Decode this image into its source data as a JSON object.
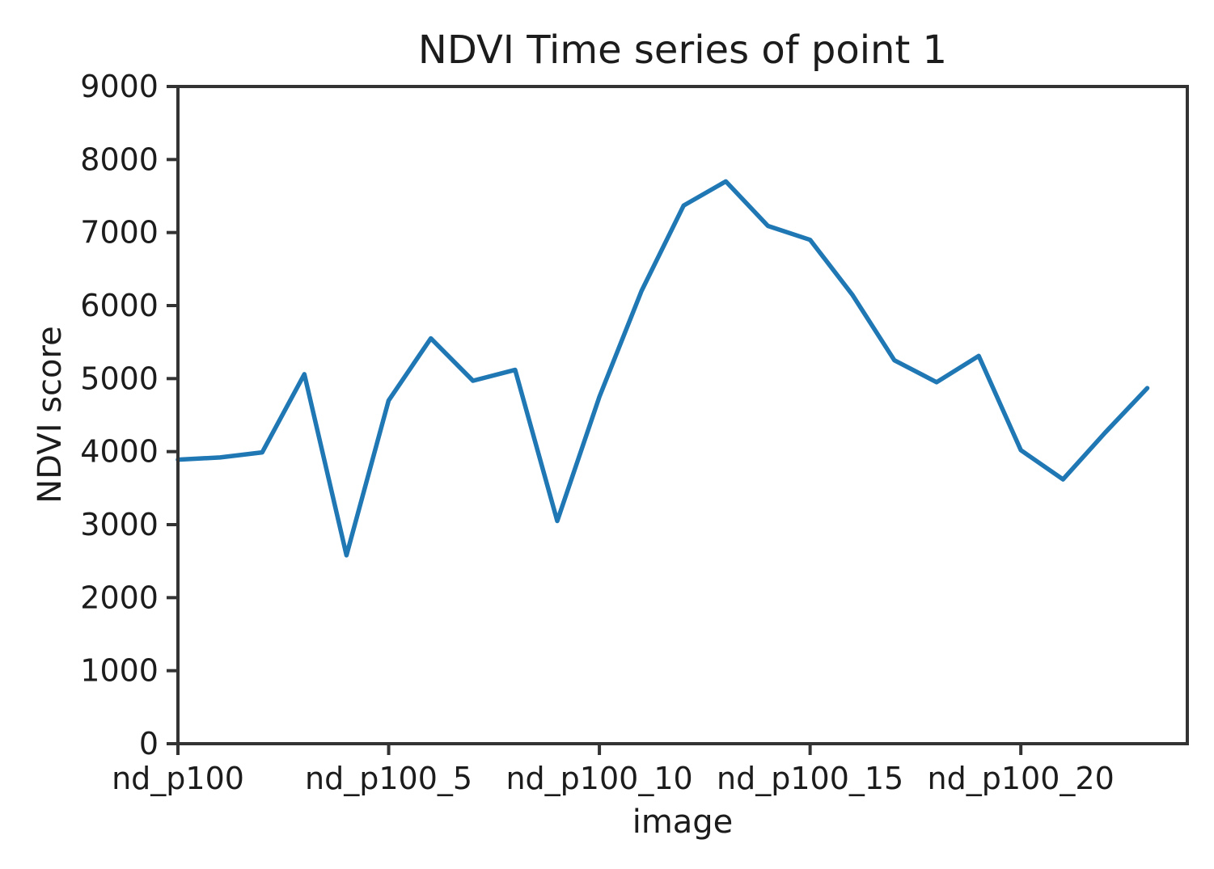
{
  "chart_data": {
    "type": "line",
    "title": "NDVI Time series of point 1",
    "xlabel": "image",
    "ylabel": "NDVI score",
    "x": [
      0,
      1,
      2,
      3,
      4,
      5,
      6,
      7,
      8,
      9,
      10,
      11,
      12,
      13,
      14,
      15,
      16,
      17,
      18,
      19,
      20,
      21,
      22,
      23
    ],
    "values": [
      3890,
      3920,
      3990,
      5060,
      2580,
      4700,
      5550,
      4970,
      5120,
      3050,
      4750,
      6200,
      7370,
      7700,
      7090,
      6900,
      6150,
      5250,
      4950,
      5310,
      4020,
      3620,
      4260,
      4870
    ],
    "x_ticks": [
      {
        "pos": 0,
        "label": "nd_p100"
      },
      {
        "pos": 5,
        "label": "nd_p100_5"
      },
      {
        "pos": 10,
        "label": "nd_p100_10"
      },
      {
        "pos": 15,
        "label": "nd_p100_15"
      },
      {
        "pos": 20,
        "label": "nd_p100_20"
      }
    ],
    "y_ticks": [
      0,
      1000,
      2000,
      3000,
      4000,
      5000,
      6000,
      7000,
      8000,
      9000
    ],
    "ylim": [
      0,
      9000
    ],
    "xlim": [
      0,
      23.95
    ],
    "grid": false,
    "legend": "none",
    "line_color": "#1f77b4"
  },
  "style": {
    "background_color": "#ffffff",
    "spine_color": "#333333",
    "tick_color": "#333333",
    "text_color": "#1c1c1c"
  }
}
